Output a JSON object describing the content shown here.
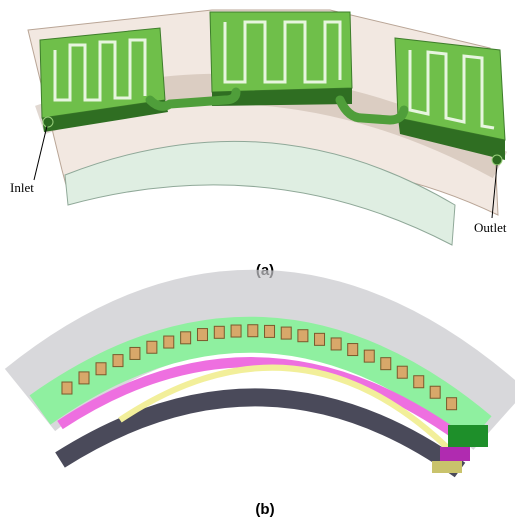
{
  "panel_a": {
    "caption": "(a)",
    "annotations": {
      "inlet": "Inlet",
      "outlet": "Outlet"
    }
  },
  "panel_b": {
    "caption": "(b)"
  }
}
